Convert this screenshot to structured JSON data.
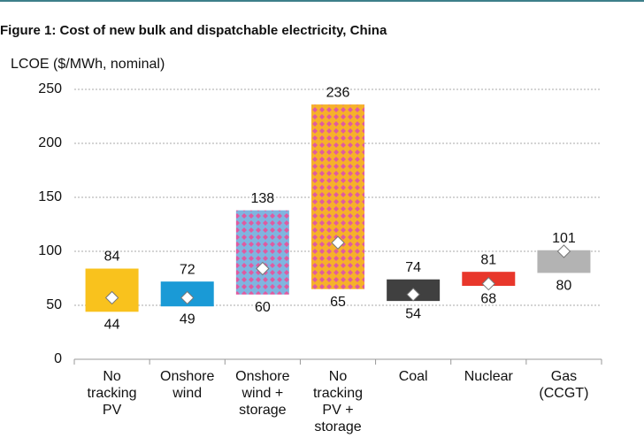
{
  "chart_data": {
    "type": "range-bar",
    "title": "Figure 1:  Cost of new bulk and dispatchable electricity, China",
    "y_label": "LCOE ($/MWh, nominal)",
    "categories": [
      "No tracking PV",
      "Onshore wind",
      "Onshore wind + storage",
      "No tracking PV + storage",
      "Coal",
      "Nuclear",
      "Gas (CCGT)"
    ],
    "low": [
      44,
      49,
      60,
      65,
      54,
      68,
      80
    ],
    "high": [
      84,
      72,
      138,
      236,
      74,
      81,
      101
    ],
    "mid": [
      57,
      57,
      84,
      108,
      60,
      70,
      100
    ],
    "colors": [
      "#f9c21d",
      "#1a9ad6",
      "#7fb5e0",
      "#f6b12a",
      "#404040",
      "#e8372b",
      "#b3b3b3"
    ],
    "pattern_colors": [
      null,
      null,
      "#e05aa0",
      "#e05aa0",
      null,
      null,
      null
    ],
    "ylim": [
      0,
      250
    ],
    "yticks": [
      0,
      50,
      100,
      150,
      200,
      250
    ],
    "grid": true
  }
}
